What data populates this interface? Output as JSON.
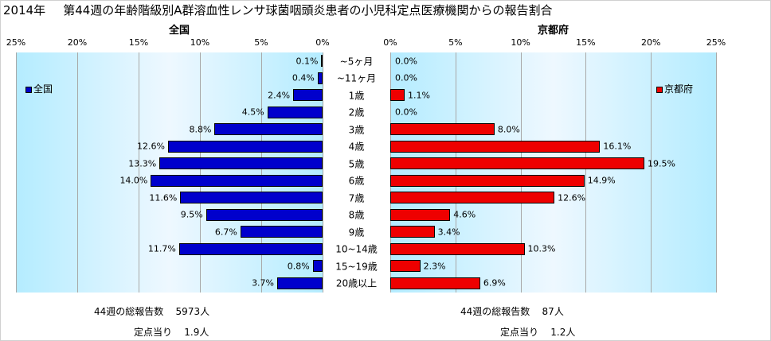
{
  "title": {
    "year": "2014年",
    "text": "第44週の年齢階級別A群溶血性レンサ球菌咽頭炎患者の小児科定点医療機関からの報告割合"
  },
  "colors": {
    "national": "#0000cc",
    "kyoto": "#ee0000",
    "plot_bg_edge": "#b4ecff",
    "plot_bg_center": "#eef8ff"
  },
  "chart_data": [
    {
      "type": "bar",
      "title": "全国",
      "legend": "全国",
      "legend_position": "top-left",
      "orientation": "horizontal",
      "x_direction": "reversed",
      "xlim": [
        0,
        25
      ],
      "xticks": [
        "25%",
        "20%",
        "15%",
        "10%",
        "5%",
        "0%"
      ],
      "categories": [
        "~5ヶ月",
        "~11ヶ月",
        "1歳",
        "2歳",
        "3歳",
        "4歳",
        "5歳",
        "6歳",
        "7歳",
        "8歳",
        "9歳",
        "10~14歳",
        "15~19歳",
        "20歳以上"
      ],
      "series": [
        {
          "name": "全国",
          "values": [
            0.1,
            0.4,
            2.4,
            4.5,
            8.8,
            12.6,
            13.3,
            14.0,
            11.6,
            9.5,
            6.7,
            11.7,
            0.8,
            3.7
          ]
        }
      ],
      "data_labels": [
        "0.1%",
        "0.4%",
        "2.4%",
        "4.5%",
        "8.8%",
        "12.6%",
        "13.3%",
        "14.0%",
        "11.6%",
        "9.5%",
        "6.7%",
        "11.7%",
        "0.8%",
        "3.7%"
      ],
      "grid": true
    },
    {
      "type": "bar",
      "title": "京都府",
      "legend": "京都府",
      "legend_position": "top-right",
      "orientation": "horizontal",
      "xlim": [
        0,
        25
      ],
      "xticks": [
        "0%",
        "5%",
        "10%",
        "15%",
        "20%",
        "25%"
      ],
      "categories": [
        "~5ヶ月",
        "~11ヶ月",
        "1歳",
        "2歳",
        "3歳",
        "4歳",
        "5歳",
        "6歳",
        "7歳",
        "8歳",
        "9歳",
        "10~14歳",
        "15~19歳",
        "20歳以上"
      ],
      "series": [
        {
          "name": "京都府",
          "values": [
            0.0,
            0.0,
            1.1,
            0.0,
            8.0,
            16.1,
            19.5,
            14.9,
            12.6,
            4.6,
            3.4,
            10.3,
            2.3,
            6.9
          ]
        }
      ],
      "data_labels": [
        "0.0%",
        "0.0%",
        "1.1%",
        "0.0%",
        "8.0%",
        "16.1%",
        "19.5%",
        "14.9%",
        "12.6%",
        "4.6%",
        "3.4%",
        "10.3%",
        "2.3%",
        "6.9%"
      ],
      "grid": true
    }
  ],
  "category_labels": [
    "~5ヶ月",
    "~11ヶ月",
    "1歳",
    "2歳",
    "3歳",
    "4歳",
    "5歳",
    "6歳",
    "7歳",
    "8歳",
    "9歳",
    "10~14歳",
    "15~19歳",
    "20歳以上"
  ],
  "footer": {
    "national": {
      "total_label": "44週の総報告数",
      "total_value": "5973人",
      "per_label": "定点当り",
      "per_value": "1.9人"
    },
    "kyoto": {
      "total_label": "44週の総報告数",
      "total_value": "87人",
      "per_label": "定点当り",
      "per_value": "1.2人"
    }
  }
}
